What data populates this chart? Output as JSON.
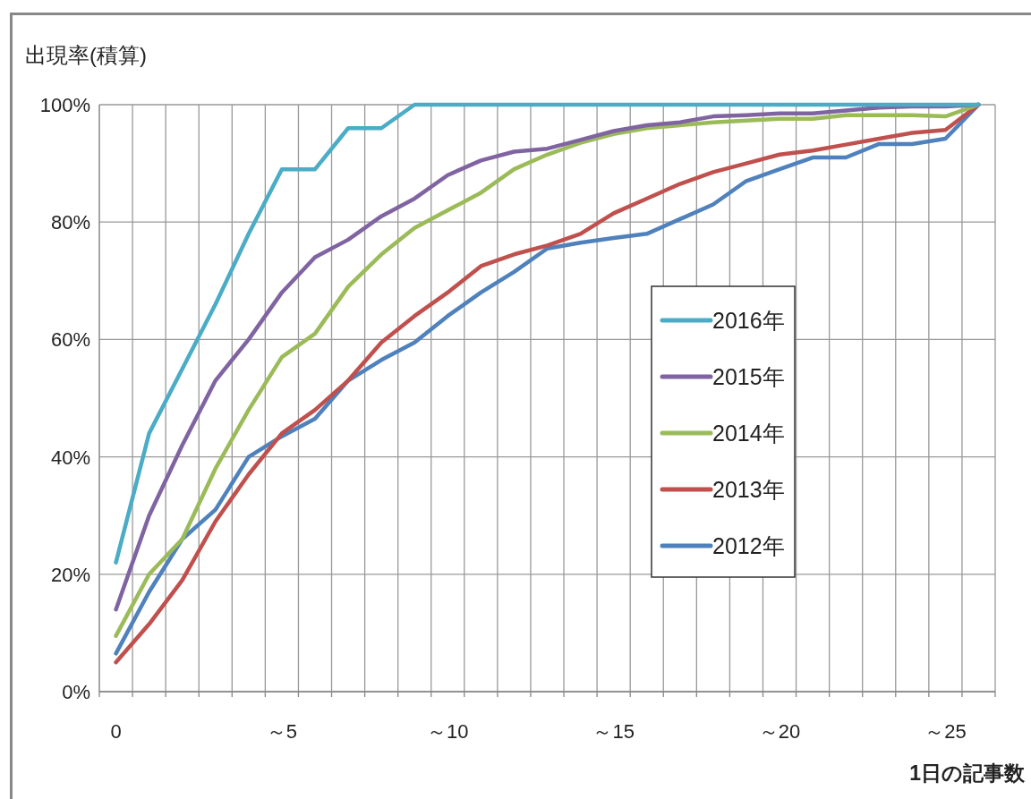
{
  "chart_data": {
    "type": "line",
    "ylabel": "出現率(積算)",
    "xlabel": "1日の記事数",
    "categories": [
      "0",
      null,
      null,
      null,
      null,
      "～5",
      null,
      null,
      null,
      null,
      "～10",
      null,
      null,
      null,
      null,
      "～15",
      null,
      null,
      null,
      null,
      "～20",
      null,
      null,
      null,
      null,
      "～25",
      null
    ],
    "series": [
      {
        "name": "2016年",
        "color": "#4bacc6",
        "values": [
          22,
          44,
          55,
          66,
          78,
          89,
          89,
          96,
          96,
          100,
          100,
          100,
          100,
          100,
          100,
          100,
          100,
          100,
          100,
          100,
          100,
          100,
          100,
          100,
          100,
          100,
          100
        ]
      },
      {
        "name": "2015年",
        "color": "#8064a2",
        "values": [
          14,
          30,
          42,
          53,
          60,
          68,
          74,
          77,
          81,
          84,
          88,
          90.5,
          92,
          92.5,
          94,
          95.5,
          96.5,
          97,
          98,
          98.2,
          98.5,
          98.5,
          99,
          99.5,
          99.7,
          99.7,
          100
        ]
      },
      {
        "name": "2014年",
        "color": "#9bbb59",
        "values": [
          9.5,
          20,
          26,
          38,
          48,
          57,
          61,
          69,
          74.5,
          79,
          82,
          85,
          89,
          91.5,
          93.5,
          95,
          96,
          96.5,
          97,
          97.3,
          97.6,
          97.6,
          98.2,
          98.2,
          98.2,
          98,
          100
        ]
      },
      {
        "name": "2013年",
        "color": "#c0504d",
        "values": [
          5,
          11.5,
          19,
          29,
          37,
          44,
          48,
          53,
          59.5,
          64,
          68,
          72.5,
          74.5,
          76,
          78,
          81.5,
          84,
          86.5,
          88.5,
          90,
          91.5,
          92.2,
          93.2,
          94.2,
          95.2,
          95.7,
          100
        ]
      },
      {
        "name": "2012年",
        "color": "#4f81bd",
        "values": [
          6.5,
          17,
          26,
          31,
          40,
          43.5,
          46.5,
          53,
          56.5,
          59.5,
          64,
          68,
          71.5,
          75.5,
          76.5,
          77.3,
          78,
          80.5,
          83,
          87,
          89,
          91,
          91,
          93.3,
          93.3,
          94.2,
          100
        ]
      }
    ],
    "ylim": [
      0,
      100
    ],
    "yticks": [
      {
        "value": 0,
        "label": "0%"
      },
      {
        "value": 20,
        "label": "20%"
      },
      {
        "value": 40,
        "label": "40%"
      },
      {
        "value": 60,
        "label": "60%"
      },
      {
        "value": 80,
        "label": "80%"
      },
      {
        "value": 100,
        "label": "100%"
      }
    ],
    "grid": true,
    "legend": "right",
    "marker": "none",
    "line_style": "solid"
  }
}
